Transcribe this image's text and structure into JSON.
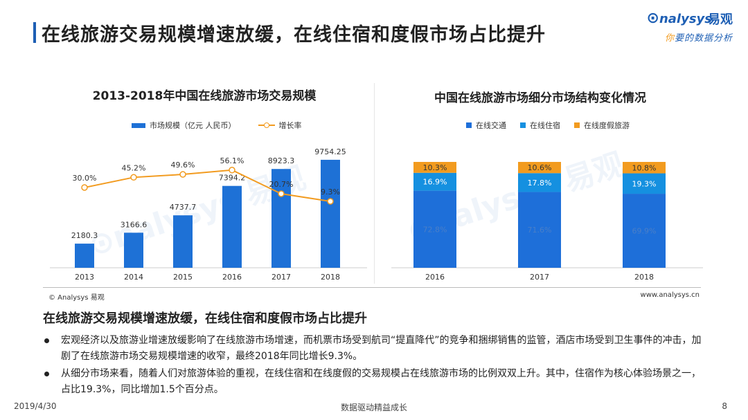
{
  "page": {
    "title": "在线旅游交易规模增速放缓，在线住宿和度假市场占比提升",
    "brand_name": "nalysys",
    "brand_cn": "易观",
    "brand_slogan_ni": "你",
    "brand_slogan_rest": "要的数据分析",
    "source": "© Analysys 易观",
    "url": "www.analysys.cn",
    "sub_heading": "在线旅游交易规模增速放缓，在线住宿和度假市场占比提升",
    "bullets": [
      "宏观经济以及旅游业增速放缓影响了在线旅游市场增速，而机票市场受到航司“提直降代”的竞争和捆绑销售的监管，酒店市场受到卫生事件的冲击，加剧了在线旅游市场交易规模增速的收窄，最终2018年同比增长9.3%。",
      "从细分市场来看，随着人们对旅游体验的重视，在线住宿和在线度假的交易规模占在线旅游市场的比例双双上升。其中，住宿作为核心体验场景之一，占比19.3%，同比增加1.5个百分点。"
    ],
    "footer_date": "2019/4/30",
    "footer_slogan": "数据驱动精益成长",
    "page_number": "8"
  },
  "colors": {
    "accent": "#1e5fb4",
    "bar_blue": "#1e71d6",
    "segment_traffic": "#1e6fd9",
    "segment_lodging": "#1590e0",
    "segment_vacation": "#f29b1f",
    "line_orange": "#f29b1f"
  },
  "chart_data": [
    {
      "type": "bar",
      "title": "2013-2018年中国在线旅游市场交易规模",
      "categories": [
        "2013",
        "2014",
        "2015",
        "2016",
        "2017",
        "2018"
      ],
      "series": [
        {
          "name": "市场规模（亿元 人民币）",
          "type": "bar",
          "values": [
            2180.3,
            3166.6,
            4737.7,
            7394.2,
            8923.3,
            9754.25
          ],
          "labels": [
            "2180.3",
            "3166.6",
            "4737.7",
            "7394.2",
            "8923.3",
            "9754.25"
          ]
        },
        {
          "name": "增长率",
          "type": "line",
          "values": [
            30.0,
            45.2,
            49.6,
            56.1,
            20.7,
            9.3
          ],
          "labels": [
            "30.0%",
            "45.2%",
            "49.6%",
            "56.1%",
            "20.7%",
            "9.3%"
          ]
        }
      ],
      "legend_position": "top"
    },
    {
      "type": "bar",
      "stacked": true,
      "title": "中国在线旅游市场细分市场结构变化情况",
      "categories": [
        "2016",
        "2017",
        "2018"
      ],
      "series": [
        {
          "name": "在线交通",
          "values": [
            72.8,
            71.6,
            69.9
          ],
          "labels": [
            "72.8%",
            "71.6%",
            "69.9%"
          ]
        },
        {
          "name": "在线住宿",
          "values": [
            16.9,
            17.8,
            19.3
          ],
          "labels": [
            "16.9%",
            "17.8%",
            "19.3%"
          ]
        },
        {
          "name": "在线度假旅游",
          "values": [
            10.3,
            10.6,
            10.8
          ],
          "labels": [
            "10.3%",
            "10.6%",
            "10.8%"
          ]
        }
      ],
      "legend_position": "top"
    }
  ]
}
